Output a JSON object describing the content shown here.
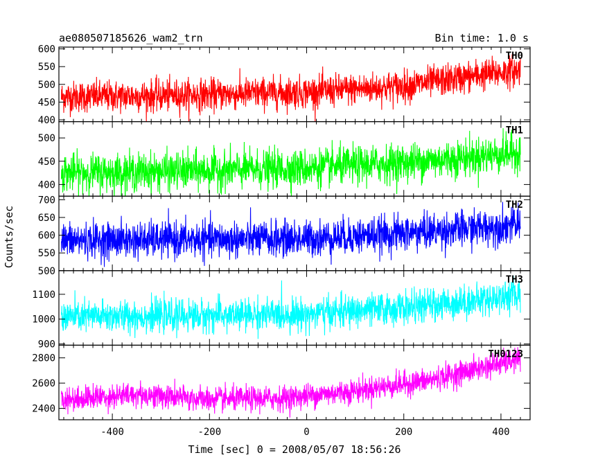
{
  "header": {
    "title": "ae080507185626_wam2_trn",
    "bin_time": "Bin time: 1.0 s"
  },
  "chart_data": {
    "type": "line",
    "title": "ae080507185626_wam2_trn",
    "subtitle": "Bin time: 1.0 s",
    "xlabel": "Time [sec] 0 = 2008/05/07 18:56:26",
    "ylabel": "Counts/sec",
    "xlim": [
      -510,
      460
    ],
    "x_range": [
      -505,
      440
    ],
    "x_ticks": [
      -400,
      -200,
      0,
      200,
      400
    ],
    "grid": false,
    "panels": [
      {
        "name": "TH0",
        "color": "#ff0000",
        "ylim": [
          395,
          605
        ],
        "y_ticks": [
          400,
          450,
          500,
          550,
          600
        ],
        "trend": [
          [
            -505,
            465
          ],
          [
            -300,
            468
          ],
          [
            0,
            478
          ],
          [
            200,
            495
          ],
          [
            350,
            525
          ],
          [
            440,
            540
          ]
        ],
        "noise_sd": 22
      },
      {
        "name": "TH1",
        "color": "#00ff00",
        "ylim": [
          375,
          535
        ],
        "y_ticks": [
          400,
          450,
          500
        ],
        "trend": [
          [
            -505,
            425
          ],
          [
            -300,
            428
          ],
          [
            0,
            435
          ],
          [
            200,
            447
          ],
          [
            350,
            460
          ],
          [
            440,
            470
          ]
        ],
        "noise_sd": 20
      },
      {
        "name": "TH2",
        "color": "#0000ff",
        "ylim": [
          500,
          710
        ],
        "y_ticks": [
          500,
          550,
          600,
          650,
          700
        ],
        "trend": [
          [
            -505,
            585
          ],
          [
            -300,
            587
          ],
          [
            0,
            590
          ],
          [
            200,
            605
          ],
          [
            350,
            620
          ],
          [
            440,
            630
          ]
        ],
        "noise_sd": 25
      },
      {
        "name": "TH3",
        "color": "#00ffff",
        "ylim": [
          895,
          1195
        ],
        "y_ticks": [
          900,
          1000,
          1100
        ],
        "trend": [
          [
            -505,
            1010
          ],
          [
            -300,
            1012
          ],
          [
            0,
            1020
          ],
          [
            200,
            1045
          ],
          [
            350,
            1075
          ],
          [
            440,
            1100
          ]
        ],
        "noise_sd": 32
      },
      {
        "name": "TH0123",
        "color": "#ff00ff",
        "ylim": [
          2310,
          2900
        ],
        "y_ticks": [
          2400,
          2600,
          2800
        ],
        "trend": [
          [
            -505,
            2470
          ],
          [
            -350,
            2510
          ],
          [
            -200,
            2470
          ],
          [
            -50,
            2480
          ],
          [
            100,
            2540
          ],
          [
            250,
            2620
          ],
          [
            380,
            2740
          ],
          [
            440,
            2790
          ]
        ],
        "noise_sd": 48
      }
    ]
  }
}
